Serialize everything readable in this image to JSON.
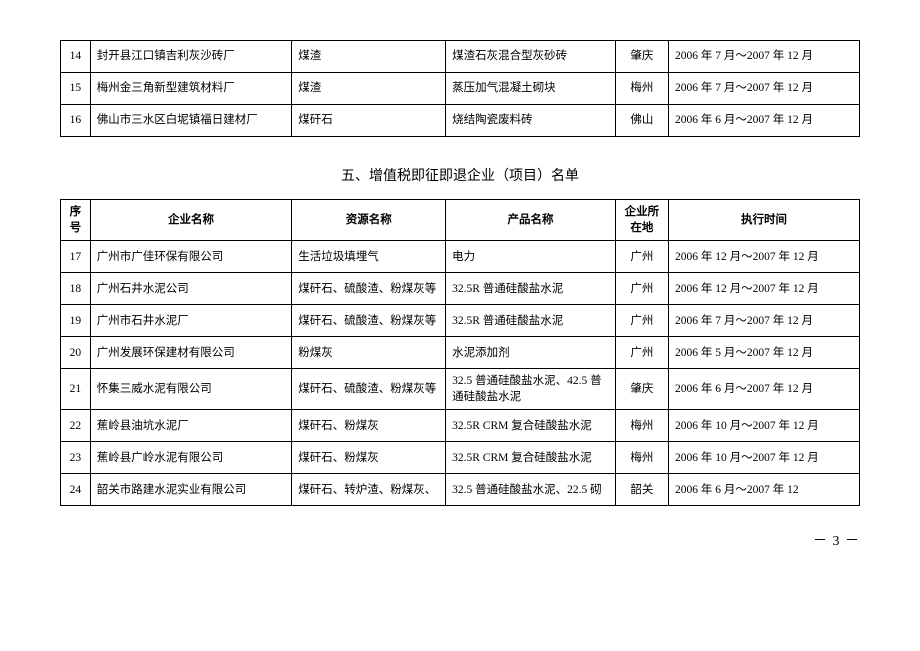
{
  "table1": {
    "rows": [
      {
        "idx": "14",
        "name": "封开县江口镇吉利灰沙砖厂",
        "res": "煤渣",
        "prod": "煤渣石灰混合型灰砂砖",
        "loc": "肇庆",
        "time": "2006 年 7 月～2007 年 12 月"
      },
      {
        "idx": "15",
        "name": "梅州金三角新型建筑材料厂",
        "res": "煤渣",
        "prod": "蒸压加气混凝土砌块",
        "loc": "梅州",
        "time": "2006 年 7 月～2007 年 12 月"
      },
      {
        "idx": "16",
        "name": "佛山市三水区白坭镇福日建材厂",
        "res": "煤矸石",
        "prod": "烧结陶瓷废料砖",
        "loc": "佛山",
        "time": "2006 年 6 月～2007 年 12 月"
      }
    ]
  },
  "section5_title": "五、增值税即征即退企业（项目）名单",
  "table2": {
    "headers": {
      "idx": "序号",
      "name": "企业名称",
      "res": "资源名称",
      "prod": "产品名称",
      "loc": "企业所在地",
      "time": "执行时间"
    },
    "rows": [
      {
        "idx": "17",
        "name": "广州市广佳环保有限公司",
        "res": "生活垃圾填埋气",
        "prod": "电力",
        "loc": "广州",
        "time": "2006 年 12 月～2007 年 12 月"
      },
      {
        "idx": "18",
        "name": "广州石井水泥公司",
        "res": "煤矸石、硫酸渣、粉煤灰等",
        "prod": "32.5R 普通硅酸盐水泥",
        "loc": "广州",
        "time": "2006 年 12 月～2007 年 12 月"
      },
      {
        "idx": "19",
        "name": "广州市石井水泥厂",
        "res": "煤矸石、硫酸渣、粉煤灰等",
        "prod": "32.5R 普通硅酸盐水泥",
        "loc": "广州",
        "time": "2006 年 7 月～2007 年 12 月"
      },
      {
        "idx": "20",
        "name": "广州发展环保建材有限公司",
        "res": "粉煤灰",
        "prod": "水泥添加剂",
        "loc": "广州",
        "time": "2006 年 5 月～2007 年 12 月"
      },
      {
        "idx": "21",
        "name": "怀集三威水泥有限公司",
        "res": "煤矸石、硫酸渣、粉煤灰等",
        "prod": "32.5 普通硅酸盐水泥、42.5 普通硅酸盐水泥",
        "loc": "肇庆",
        "time": "2006 年 6 月～2007 年 12 月"
      },
      {
        "idx": "22",
        "name": "蕉岭县油坑水泥厂",
        "res": "煤矸石、粉煤灰",
        "prod": "32.5R CRM 复合硅酸盐水泥",
        "loc": "梅州",
        "time": "2006 年 10 月～2007 年 12 月"
      },
      {
        "idx": "23",
        "name": "蕉岭县广岭水泥有限公司",
        "res": "煤矸石、粉煤灰",
        "prod": "32.5R CRM 复合硅酸盐水泥",
        "loc": "梅州",
        "time": "2006 年 10 月～2007 年 12 月"
      },
      {
        "idx": "24",
        "name": "韶关市路建水泥实业有限公司",
        "res": "煤矸石、转炉渣、粉煤灰、",
        "prod": "32.5 普通硅酸盐水泥、22.5 砌",
        "loc": "韶关",
        "time": "2006 年 6 月～2007 年 12"
      }
    ]
  },
  "page_number": "－ 3 －"
}
